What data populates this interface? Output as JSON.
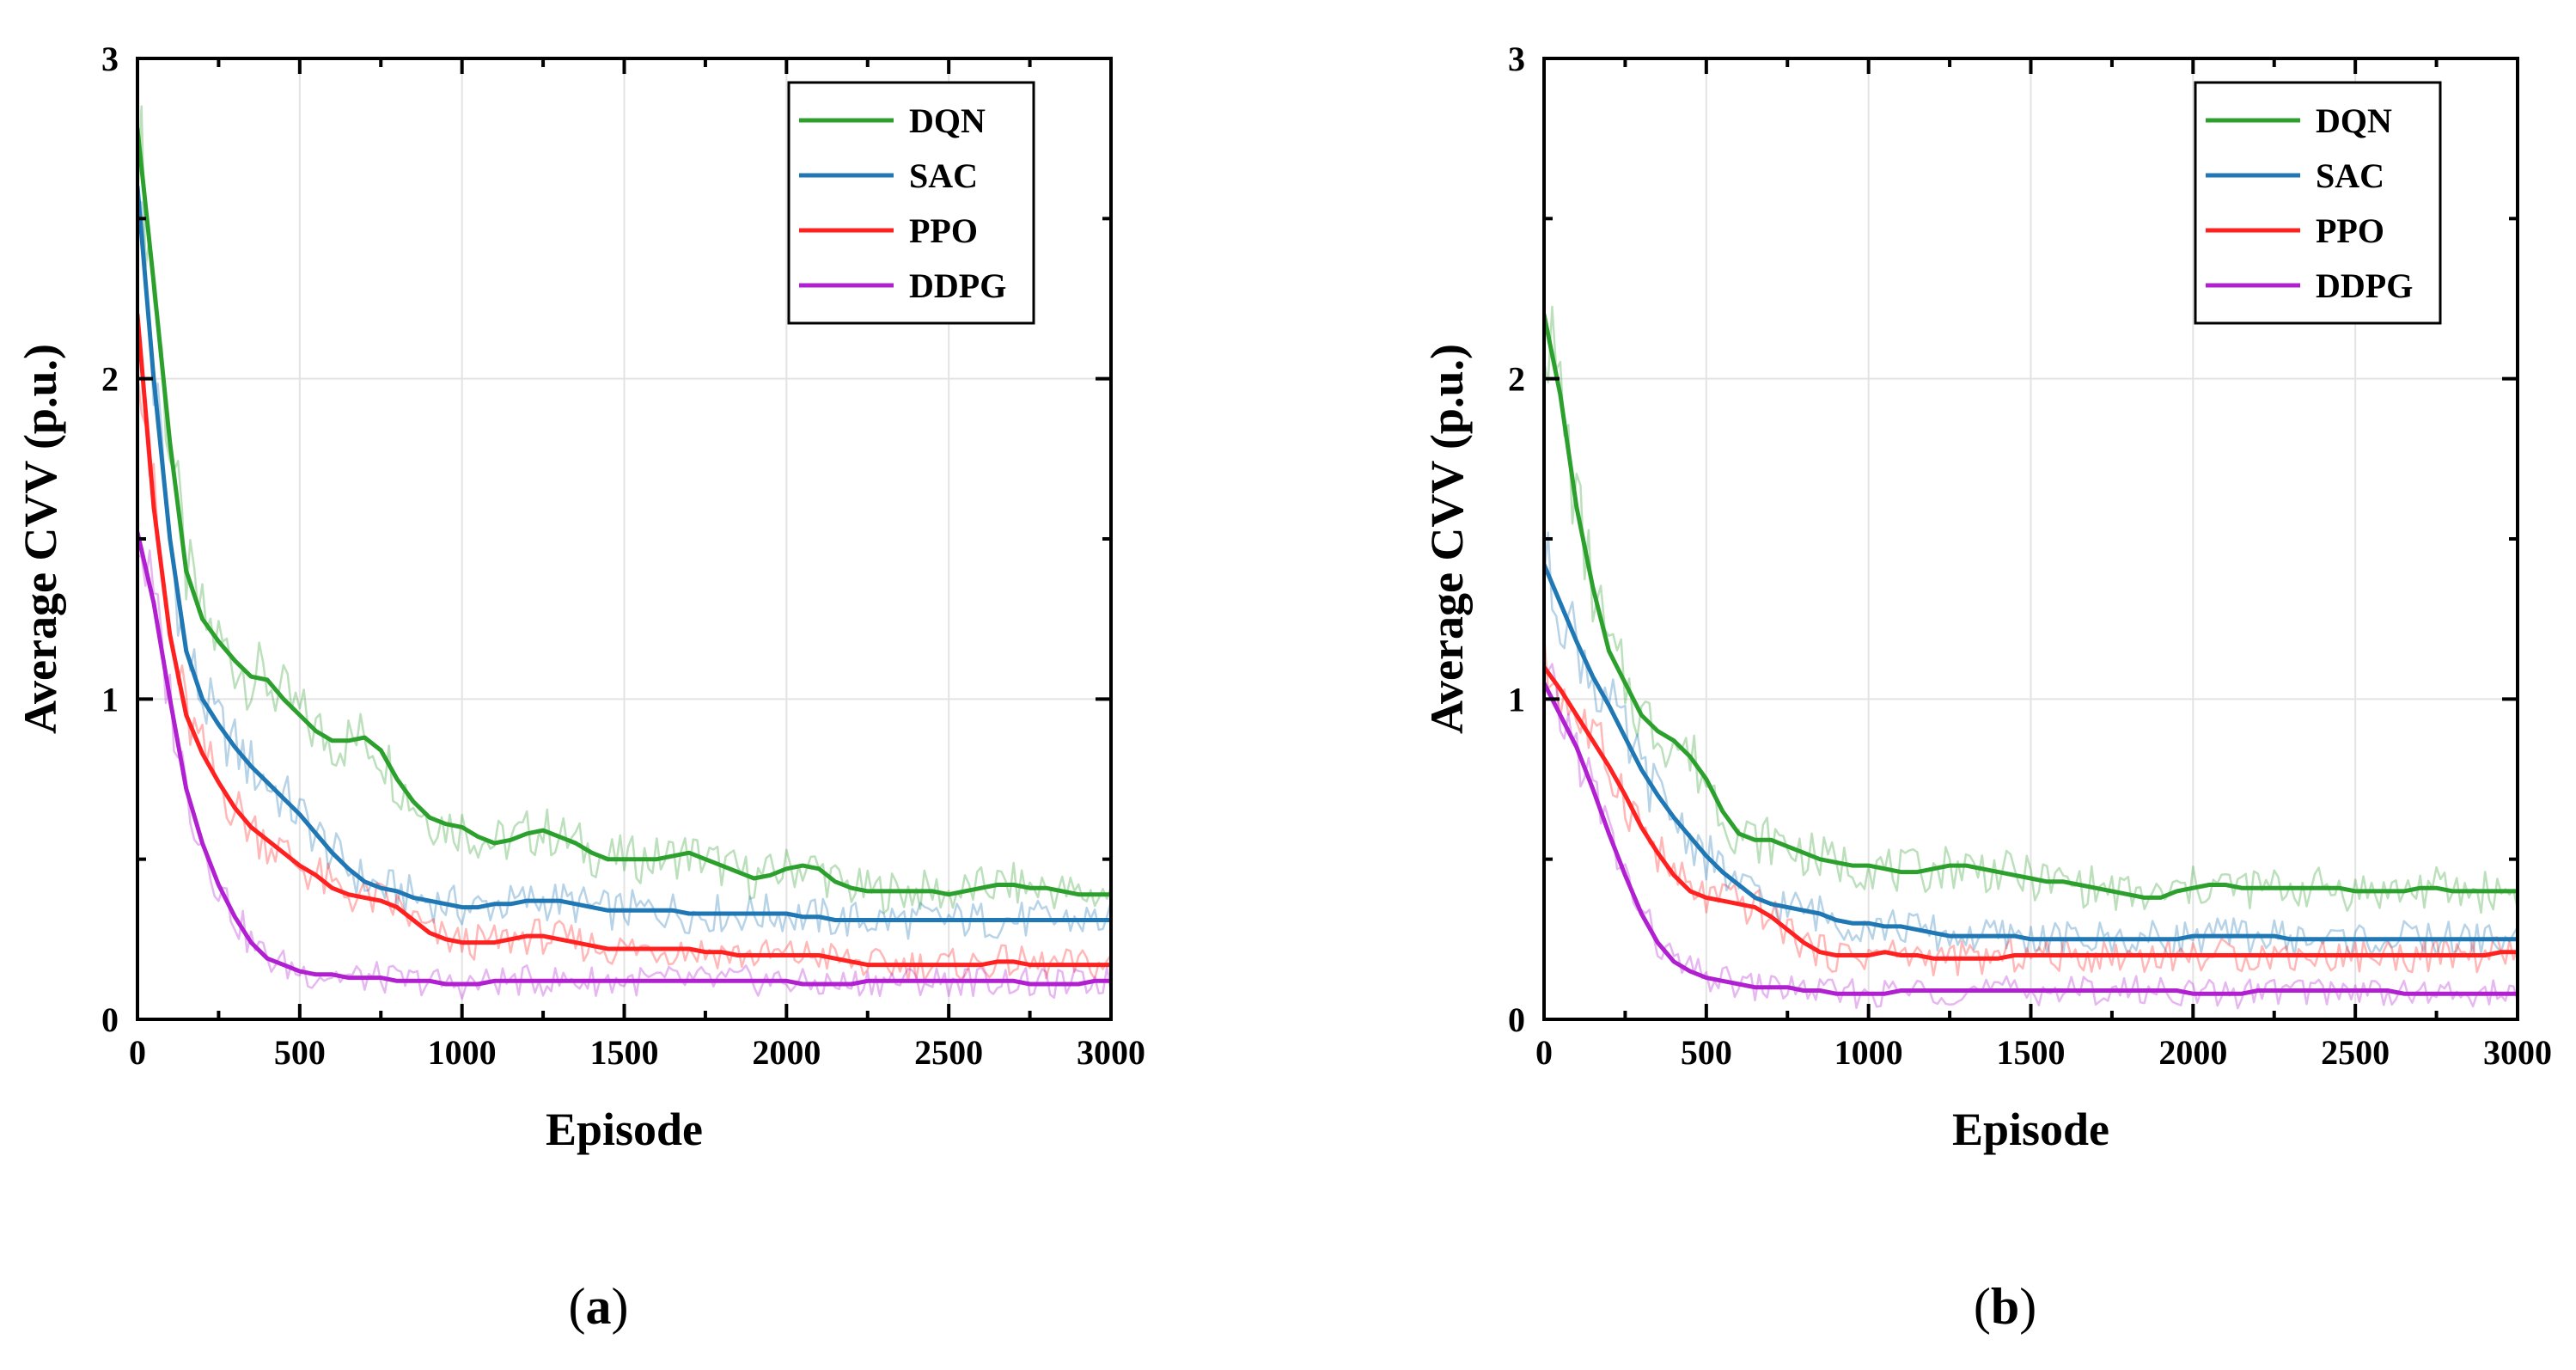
{
  "chart_data": [
    {
      "panel_label": "a",
      "type": "line",
      "title": "",
      "xlabel": "Episode",
      "ylabel": "Average CVV (p.u.)",
      "xlim": [
        0,
        3000
      ],
      "ylim": [
        0,
        3
      ],
      "xticks": [
        "0",
        "500",
        "1000",
        "1500",
        "2000",
        "2500",
        "3000"
      ],
      "yticks": [
        "0",
        "1",
        "2",
        "3"
      ],
      "grid": true,
      "legend_position": "top-right",
      "series": [
        {
          "name": "DQN",
          "color": "#2ca02c",
          "x": [
            0,
            50,
            100,
            150,
            200,
            250,
            300,
            350,
            400,
            450,
            500,
            550,
            600,
            650,
            700,
            750,
            800,
            850,
            900,
            950,
            1000,
            1050,
            1100,
            1150,
            1200,
            1250,
            1300,
            1350,
            1400,
            1450,
            1500,
            1550,
            1600,
            1650,
            1700,
            1750,
            1800,
            1850,
            1900,
            1950,
            2000,
            2050,
            2100,
            2150,
            2200,
            2250,
            2300,
            2350,
            2400,
            2450,
            2500,
            2550,
            2600,
            2650,
            2700,
            2750,
            2800,
            2850,
            2900,
            2950,
            3000
          ],
          "y": [
            2.78,
            2.3,
            1.8,
            1.4,
            1.25,
            1.18,
            1.12,
            1.07,
            1.06,
            1.0,
            0.95,
            0.9,
            0.87,
            0.87,
            0.88,
            0.84,
            0.75,
            0.68,
            0.63,
            0.61,
            0.6,
            0.57,
            0.55,
            0.56,
            0.58,
            0.59,
            0.57,
            0.55,
            0.52,
            0.5,
            0.5,
            0.5,
            0.5,
            0.51,
            0.52,
            0.5,
            0.48,
            0.46,
            0.44,
            0.45,
            0.47,
            0.48,
            0.47,
            0.43,
            0.41,
            0.4,
            0.4,
            0.4,
            0.4,
            0.4,
            0.39,
            0.4,
            0.41,
            0.42,
            0.42,
            0.41,
            0.41,
            0.4,
            0.39,
            0.39,
            0.39
          ]
        },
        {
          "name": "SAC",
          "color": "#1f77b4",
          "x": [
            0,
            50,
            100,
            150,
            200,
            250,
            300,
            350,
            400,
            450,
            500,
            550,
            600,
            650,
            700,
            750,
            800,
            850,
            900,
            950,
            1000,
            1050,
            1100,
            1150,
            1200,
            1250,
            1300,
            1350,
            1400,
            1450,
            1500,
            1550,
            1600,
            1650,
            1700,
            1750,
            1800,
            1850,
            1900,
            1950,
            2000,
            2050,
            2100,
            2150,
            2200,
            2250,
            2300,
            2350,
            2400,
            2450,
            2500,
            2550,
            2600,
            2650,
            2700,
            2750,
            2800,
            2850,
            2900,
            2950,
            3000
          ],
          "y": [
            2.6,
            2.0,
            1.5,
            1.15,
            1.0,
            0.92,
            0.85,
            0.79,
            0.74,
            0.69,
            0.64,
            0.58,
            0.52,
            0.47,
            0.43,
            0.41,
            0.4,
            0.38,
            0.37,
            0.36,
            0.35,
            0.35,
            0.36,
            0.36,
            0.37,
            0.37,
            0.37,
            0.36,
            0.35,
            0.34,
            0.34,
            0.34,
            0.34,
            0.34,
            0.33,
            0.33,
            0.33,
            0.33,
            0.33,
            0.33,
            0.33,
            0.32,
            0.32,
            0.31,
            0.31,
            0.31,
            0.31,
            0.31,
            0.31,
            0.31,
            0.31,
            0.31,
            0.31,
            0.31,
            0.31,
            0.31,
            0.31,
            0.31,
            0.31,
            0.31,
            0.31
          ]
        },
        {
          "name": "PPO",
          "color": "#ff2020",
          "x": [
            0,
            50,
            100,
            150,
            200,
            250,
            300,
            350,
            400,
            450,
            500,
            550,
            600,
            650,
            700,
            750,
            800,
            850,
            900,
            950,
            1000,
            1050,
            1100,
            1150,
            1200,
            1250,
            1300,
            1350,
            1400,
            1450,
            1500,
            1550,
            1600,
            1650,
            1700,
            1750,
            1800,
            1850,
            1900,
            1950,
            2000,
            2050,
            2100,
            2150,
            2200,
            2250,
            2300,
            2350,
            2400,
            2450,
            2500,
            2550,
            2600,
            2650,
            2700,
            2750,
            2800,
            2850,
            2900,
            2950,
            3000
          ],
          "y": [
            2.2,
            1.6,
            1.2,
            0.95,
            0.83,
            0.74,
            0.66,
            0.6,
            0.56,
            0.52,
            0.48,
            0.45,
            0.41,
            0.39,
            0.38,
            0.37,
            0.35,
            0.31,
            0.27,
            0.25,
            0.24,
            0.24,
            0.24,
            0.25,
            0.26,
            0.26,
            0.25,
            0.24,
            0.23,
            0.22,
            0.22,
            0.22,
            0.22,
            0.22,
            0.22,
            0.21,
            0.21,
            0.2,
            0.2,
            0.2,
            0.2,
            0.2,
            0.2,
            0.19,
            0.18,
            0.17,
            0.17,
            0.17,
            0.17,
            0.17,
            0.17,
            0.17,
            0.17,
            0.18,
            0.18,
            0.17,
            0.17,
            0.17,
            0.17,
            0.17,
            0.17
          ]
        },
        {
          "name": "DDPG",
          "color": "#b020d0",
          "x": [
            0,
            50,
            100,
            150,
            200,
            250,
            300,
            350,
            400,
            450,
            500,
            550,
            600,
            650,
            700,
            750,
            800,
            850,
            900,
            950,
            1000,
            1050,
            1100,
            1150,
            1200,
            1250,
            1300,
            1350,
            1400,
            1450,
            1500,
            1550,
            1600,
            1650,
            1700,
            1750,
            1800,
            1850,
            1900,
            1950,
            2000,
            2050,
            2100,
            2150,
            2200,
            2250,
            2300,
            2350,
            2400,
            2450,
            2500,
            2550,
            2600,
            2650,
            2700,
            2750,
            2800,
            2850,
            2900,
            2950,
            3000
          ],
          "y": [
            1.52,
            1.3,
            1.0,
            0.72,
            0.55,
            0.42,
            0.32,
            0.24,
            0.19,
            0.17,
            0.15,
            0.14,
            0.14,
            0.13,
            0.13,
            0.13,
            0.12,
            0.12,
            0.12,
            0.11,
            0.11,
            0.11,
            0.12,
            0.12,
            0.12,
            0.12,
            0.12,
            0.12,
            0.12,
            0.12,
            0.12,
            0.12,
            0.12,
            0.12,
            0.12,
            0.12,
            0.12,
            0.12,
            0.12,
            0.12,
            0.12,
            0.11,
            0.11,
            0.11,
            0.11,
            0.12,
            0.12,
            0.12,
            0.12,
            0.12,
            0.12,
            0.12,
            0.12,
            0.12,
            0.12,
            0.11,
            0.11,
            0.11,
            0.11,
            0.12,
            0.12
          ]
        }
      ]
    },
    {
      "panel_label": "b",
      "type": "line",
      "title": "",
      "xlabel": "Episode",
      "ylabel": "Average CVV (p.u.)",
      "xlim": [
        0,
        3000
      ],
      "ylim": [
        0,
        3
      ],
      "xticks": [
        "0",
        "500",
        "1000",
        "1500",
        "2000",
        "2500",
        "3000"
      ],
      "yticks": [
        "0",
        "1",
        "2",
        "3"
      ],
      "grid": true,
      "legend_position": "top-right",
      "series": [
        {
          "name": "DQN",
          "color": "#2ca02c",
          "x": [
            0,
            50,
            100,
            150,
            200,
            250,
            300,
            350,
            400,
            450,
            500,
            550,
            600,
            650,
            700,
            750,
            800,
            850,
            900,
            950,
            1000,
            1050,
            1100,
            1150,
            1200,
            1250,
            1300,
            1350,
            1400,
            1450,
            1500,
            1550,
            1600,
            1650,
            1700,
            1750,
            1800,
            1850,
            1900,
            1950,
            2000,
            2050,
            2100,
            2150,
            2200,
            2250,
            2300,
            2350,
            2400,
            2450,
            2500,
            2550,
            2600,
            2650,
            2700,
            2750,
            2800,
            2850,
            2900,
            2950,
            3000
          ],
          "y": [
            2.2,
            1.95,
            1.6,
            1.35,
            1.15,
            1.05,
            0.95,
            0.9,
            0.87,
            0.82,
            0.75,
            0.65,
            0.58,
            0.56,
            0.56,
            0.54,
            0.52,
            0.5,
            0.49,
            0.48,
            0.48,
            0.47,
            0.46,
            0.46,
            0.47,
            0.48,
            0.48,
            0.47,
            0.46,
            0.45,
            0.44,
            0.43,
            0.43,
            0.42,
            0.41,
            0.4,
            0.39,
            0.38,
            0.38,
            0.4,
            0.41,
            0.42,
            0.42,
            0.41,
            0.41,
            0.41,
            0.41,
            0.41,
            0.41,
            0.41,
            0.4,
            0.4,
            0.4,
            0.4,
            0.41,
            0.41,
            0.4,
            0.4,
            0.4,
            0.4,
            0.4
          ]
        },
        {
          "name": "SAC",
          "color": "#1f77b4",
          "x": [
            0,
            50,
            100,
            150,
            200,
            250,
            300,
            350,
            400,
            450,
            500,
            550,
            600,
            650,
            700,
            750,
            800,
            850,
            900,
            950,
            1000,
            1050,
            1100,
            1150,
            1200,
            1250,
            1300,
            1350,
            1400,
            1450,
            1500,
            1550,
            1600,
            1650,
            1700,
            1750,
            1800,
            1850,
            1900,
            1950,
            2000,
            2050,
            2100,
            2150,
            2200,
            2250,
            2300,
            2350,
            2400,
            2450,
            2500,
            2550,
            2600,
            2650,
            2700,
            2750,
            2800,
            2850,
            2900,
            2950,
            3000
          ],
          "y": [
            1.42,
            1.3,
            1.18,
            1.07,
            0.98,
            0.88,
            0.78,
            0.7,
            0.63,
            0.57,
            0.51,
            0.46,
            0.42,
            0.38,
            0.36,
            0.35,
            0.34,
            0.33,
            0.31,
            0.3,
            0.3,
            0.29,
            0.29,
            0.28,
            0.27,
            0.26,
            0.26,
            0.26,
            0.26,
            0.26,
            0.25,
            0.25,
            0.25,
            0.25,
            0.25,
            0.25,
            0.25,
            0.25,
            0.25,
            0.25,
            0.26,
            0.26,
            0.26,
            0.26,
            0.26,
            0.26,
            0.25,
            0.25,
            0.25,
            0.25,
            0.25,
            0.25,
            0.25,
            0.25,
            0.25,
            0.25,
            0.25,
            0.25,
            0.25,
            0.25,
            0.25
          ]
        },
        {
          "name": "PPO",
          "color": "#ff2020",
          "x": [
            0,
            50,
            100,
            150,
            200,
            250,
            300,
            350,
            400,
            450,
            500,
            550,
            600,
            650,
            700,
            750,
            800,
            850,
            900,
            950,
            1000,
            1050,
            1100,
            1150,
            1200,
            1250,
            1300,
            1350,
            1400,
            1450,
            1500,
            1550,
            1600,
            1650,
            1700,
            1750,
            1800,
            1850,
            1900,
            1950,
            2000,
            2050,
            2100,
            2150,
            2200,
            2250,
            2300,
            2350,
            2400,
            2450,
            2500,
            2550,
            2600,
            2650,
            2700,
            2750,
            2800,
            2850,
            2900,
            2950,
            3000
          ],
          "y": [
            1.1,
            1.03,
            0.95,
            0.87,
            0.79,
            0.7,
            0.6,
            0.52,
            0.45,
            0.4,
            0.38,
            0.37,
            0.36,
            0.35,
            0.32,
            0.28,
            0.24,
            0.21,
            0.2,
            0.2,
            0.2,
            0.21,
            0.2,
            0.2,
            0.19,
            0.19,
            0.19,
            0.19,
            0.19,
            0.2,
            0.2,
            0.2,
            0.2,
            0.2,
            0.2,
            0.2,
            0.2,
            0.2,
            0.2,
            0.2,
            0.2,
            0.2,
            0.2,
            0.2,
            0.2,
            0.2,
            0.2,
            0.2,
            0.2,
            0.2,
            0.2,
            0.2,
            0.2,
            0.2,
            0.2,
            0.2,
            0.2,
            0.2,
            0.2,
            0.21,
            0.21
          ]
        },
        {
          "name": "DDPG",
          "color": "#b020d0",
          "x": [
            0,
            50,
            100,
            150,
            200,
            250,
            300,
            350,
            400,
            450,
            500,
            550,
            600,
            650,
            700,
            750,
            800,
            850,
            900,
            950,
            1000,
            1050,
            1100,
            1150,
            1200,
            1250,
            1300,
            1350,
            1400,
            1450,
            1500,
            1550,
            1600,
            1650,
            1700,
            1750,
            1800,
            1850,
            1900,
            1950,
            2000,
            2050,
            2100,
            2150,
            2200,
            2250,
            2300,
            2350,
            2400,
            2450,
            2500,
            2550,
            2600,
            2650,
            2700,
            2750,
            2800,
            2850,
            2900,
            2950,
            3000
          ],
          "y": [
            1.05,
            0.95,
            0.85,
            0.72,
            0.58,
            0.45,
            0.33,
            0.24,
            0.18,
            0.15,
            0.13,
            0.12,
            0.11,
            0.1,
            0.1,
            0.1,
            0.09,
            0.09,
            0.08,
            0.08,
            0.08,
            0.08,
            0.09,
            0.09,
            0.09,
            0.09,
            0.09,
            0.09,
            0.09,
            0.09,
            0.09,
            0.09,
            0.09,
            0.09,
            0.09,
            0.09,
            0.09,
            0.09,
            0.09,
            0.09,
            0.08,
            0.08,
            0.08,
            0.08,
            0.09,
            0.09,
            0.09,
            0.09,
            0.09,
            0.09,
            0.09,
            0.09,
            0.09,
            0.08,
            0.08,
            0.08,
            0.08,
            0.08,
            0.08,
            0.08,
            0.08
          ]
        }
      ]
    }
  ]
}
